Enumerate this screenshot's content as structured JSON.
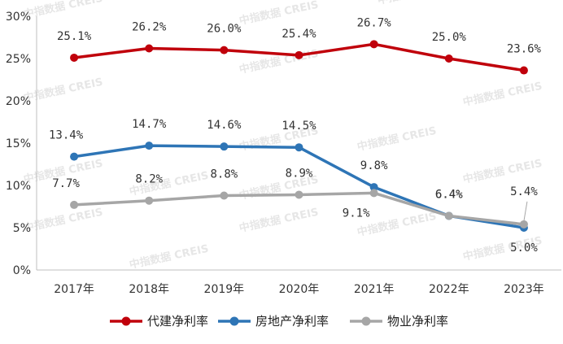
{
  "watermark": "中指数据 CREIS",
  "chart_data": {
    "type": "line",
    "categories": [
      "2017年",
      "2018年",
      "2019年",
      "2020年",
      "2021年",
      "2022年",
      "2023年"
    ],
    "ylim": [
      0,
      30
    ],
    "yticks": [
      "0%",
      "5%",
      "10%",
      "15%",
      "20%",
      "25%",
      "30%"
    ],
    "grid": false,
    "legend_position": "bottom",
    "series": [
      {
        "name": "代建净利率",
        "color": "#c0000b",
        "values": [
          25.1,
          26.2,
          26.0,
          25.4,
          26.7,
          25.0,
          23.6
        ],
        "labels": [
          "25.1%",
          "26.2%",
          "26.0%",
          "25.4%",
          "26.7%",
          "25.0%",
          "23.6%"
        ]
      },
      {
        "name": "房地产净利率",
        "color": "#2e75b6",
        "values": [
          13.4,
          14.7,
          14.6,
          14.5,
          9.8,
          6.4,
          5.0
        ],
        "labels": [
          "13.4%",
          "14.7%",
          "14.6%",
          "14.5%",
          "9.8%",
          "6.4%",
          "5.0%"
        ]
      },
      {
        "name": "物业净利率",
        "color": "#a6a6a6",
        "values": [
          7.7,
          8.2,
          8.8,
          8.9,
          9.1,
          6.4,
          5.4
        ],
        "labels": [
          "7.7%",
          "8.2%",
          "8.8%",
          "8.9%",
          "9.1%",
          "6.4%",
          "5.4%"
        ]
      }
    ]
  }
}
